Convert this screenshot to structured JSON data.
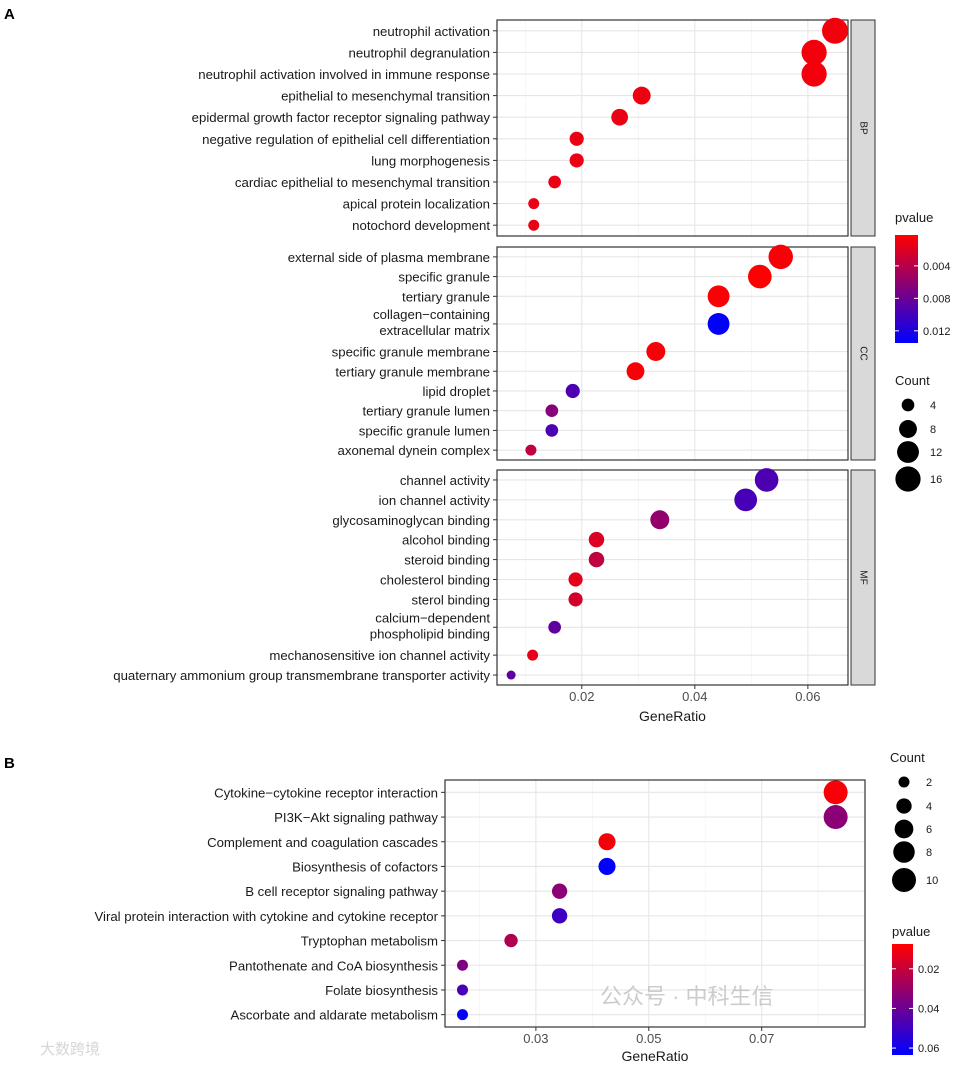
{
  "chart_data": [
    {
      "panel_label": "A",
      "type": "scatter",
      "xlabel": "GeneRatio",
      "xlim": [
        0.005,
        0.0671
      ],
      "xticks": [
        0.02,
        0.04,
        0.06
      ],
      "xtick_labels": [
        "0.02",
        "0.04",
        "0.06"
      ],
      "grid": true,
      "legend_placement": "right",
      "color_legend": {
        "title": "pvalue",
        "range": [
          0.0002,
          0.0135
        ],
        "ticks": [
          0.004,
          0.008,
          0.012
        ],
        "tick_labels": [
          "0.004",
          "0.008",
          "0.012"
        ],
        "low_color": "#FF0000",
        "high_color": "#0000FF"
      },
      "size_legend": {
        "title": "Count",
        "values": [
          4,
          8,
          12,
          16
        ],
        "labels": [
          "4",
          "8",
          "12",
          "16"
        ],
        "range": [
          2,
          17
        ]
      },
      "facets": [
        {
          "name": "BP",
          "terms": [
            {
              "label": "neutrophil activation",
              "x": 0.0648,
              "count": 17,
              "pvalue": 0.0008
            },
            {
              "label": "neutrophil degranulation",
              "x": 0.0611,
              "count": 16,
              "pvalue": 0.0008
            },
            {
              "label": "neutrophil activation involved in immune response",
              "x": 0.0611,
              "count": 16,
              "pvalue": 0.0008
            },
            {
              "label": "epithelial to mesenchymal transition",
              "x": 0.0306,
              "count": 8,
              "pvalue": 0.001
            },
            {
              "label": "epidermal growth factor receptor signaling pathway",
              "x": 0.0267,
              "count": 7,
              "pvalue": 0.0012
            },
            {
              "label": "negative regulation of epithelial cell differentiation",
              "x": 0.0191,
              "count": 5,
              "pvalue": 0.0012
            },
            {
              "label": "lung morphogenesis",
              "x": 0.0191,
              "count": 5,
              "pvalue": 0.0012
            },
            {
              "label": "cardiac epithelial to mesenchymal transition",
              "x": 0.0152,
              "count": 4,
              "pvalue": 0.0012
            },
            {
              "label": "apical protein localization",
              "x": 0.0115,
              "count": 3,
              "pvalue": 0.0012
            },
            {
              "label": "notochord development",
              "x": 0.0115,
              "count": 3,
              "pvalue": 0.0012
            }
          ]
        },
        {
          "name": "CC",
          "terms": [
            {
              "label": "external side of plasma membrane",
              "x": 0.0552,
              "count": 15,
              "pvalue": 0.0005
            },
            {
              "label": "specific granule",
              "x": 0.0515,
              "count": 14,
              "pvalue": 0.0003
            },
            {
              "label": "tertiary granule",
              "x": 0.0442,
              "count": 12,
              "pvalue": 0.0004
            },
            {
              "label": "collagen−containing\nextracellular matrix",
              "x": 0.0442,
              "count": 12,
              "pvalue": 0.0134
            },
            {
              "label": "specific granule membrane",
              "x": 0.0331,
              "count": 9,
              "pvalue": 0.0006
            },
            {
              "label": "tertiary granule membrane",
              "x": 0.0295,
              "count": 8,
              "pvalue": 0.0006
            },
            {
              "label": "lipid droplet",
              "x": 0.0184,
              "count": 5,
              "pvalue": 0.0095
            },
            {
              "label": "tertiary granule lumen",
              "x": 0.0147,
              "count": 4,
              "pvalue": 0.0065
            },
            {
              "label": "specific granule lumen",
              "x": 0.0147,
              "count": 4,
              "pvalue": 0.0095
            },
            {
              "label": "axonemal dynein complex",
              "x": 0.011,
              "count": 3,
              "pvalue": 0.0035
            }
          ]
        },
        {
          "name": "MF",
          "terms": [
            {
              "label": "channel activity",
              "x": 0.0527,
              "count": 14,
              "pvalue": 0.0095
            },
            {
              "label": "ion channel activity",
              "x": 0.049,
              "count": 13,
              "pvalue": 0.0098
            },
            {
              "label": "glycosaminoglycan binding",
              "x": 0.0338,
              "count": 9,
              "pvalue": 0.0058
            },
            {
              "label": "alcohol binding",
              "x": 0.0226,
              "count": 6,
              "pvalue": 0.002
            },
            {
              "label": "steroid binding",
              "x": 0.0226,
              "count": 6,
              "pvalue": 0.0035
            },
            {
              "label": "cholesterol binding",
              "x": 0.0189,
              "count": 5,
              "pvalue": 0.0015
            },
            {
              "label": "sterol binding",
              "x": 0.0189,
              "count": 5,
              "pvalue": 0.0025
            },
            {
              "label": "calcium−dependent\nphospholipid binding",
              "x": 0.0152,
              "count": 4,
              "pvalue": 0.0085
            },
            {
              "label": "mechanosensitive ion channel activity",
              "x": 0.0113,
              "count": 3,
              "pvalue": 0.0015
            },
            {
              "label": "quaternary ammonium group transmembrane transporter activity",
              "x": 0.0075,
              "count": 2,
              "pvalue": 0.0085
            }
          ]
        }
      ]
    },
    {
      "panel_label": "B",
      "type": "scatter",
      "xlabel": "GeneRatio",
      "xlim": [
        0.0139,
        0.0883
      ],
      "xticks": [
        0.03,
        0.05,
        0.07
      ],
      "xtick_labels": [
        "0.03",
        "0.05",
        "0.07"
      ],
      "grid": true,
      "legend_placement": "right",
      "color_legend": {
        "title": "pvalue",
        "range": [
          0.0075,
          0.0635
        ],
        "ticks": [
          0.02,
          0.04,
          0.06
        ],
        "tick_labels": [
          "0.02",
          "0.04",
          "0.06"
        ],
        "low_color": "#FF0000",
        "high_color": "#0000FF"
      },
      "size_legend": {
        "title": "Count",
        "values": [
          2,
          4,
          6,
          8,
          10
        ],
        "labels": [
          "2",
          "4",
          "6",
          "8",
          "10"
        ],
        "range": [
          2,
          10
        ]
      },
      "facets": [
        {
          "name": "",
          "terms": [
            {
              "label": "Cytokine−cytokine receptor interaction",
              "x": 0.0831,
              "count": 10,
              "pvalue": 0.009
            },
            {
              "label": "PI3K−Akt signaling pathway",
              "x": 0.0831,
              "count": 10,
              "pvalue": 0.033
            },
            {
              "label": "Complement and coagulation cascades",
              "x": 0.0426,
              "count": 5,
              "pvalue": 0.01
            },
            {
              "label": "Biosynthesis of cofactors",
              "x": 0.0426,
              "count": 5,
              "pvalue": 0.063
            },
            {
              "label": "B cell receptor signaling pathway",
              "x": 0.0342,
              "count": 4,
              "pvalue": 0.033
            },
            {
              "label": "Viral protein interaction with cytokine and cytokine receptor",
              "x": 0.0342,
              "count": 4,
              "pvalue": 0.05
            },
            {
              "label": "Tryptophan metabolism",
              "x": 0.0256,
              "count": 3,
              "pvalue": 0.025
            },
            {
              "label": "Pantothenate and CoA biosynthesis",
              "x": 0.017,
              "count": 2,
              "pvalue": 0.036
            },
            {
              "label": "Folate biosynthesis",
              "x": 0.017,
              "count": 2,
              "pvalue": 0.048
            },
            {
              "label": "Ascorbate and aldarate metabolism",
              "x": 0.017,
              "count": 2,
              "pvalue": 0.062
            }
          ]
        }
      ]
    }
  ],
  "watermark": {
    "wechat": "公众号 · 中科生信",
    "corner": "大数跨境"
  }
}
